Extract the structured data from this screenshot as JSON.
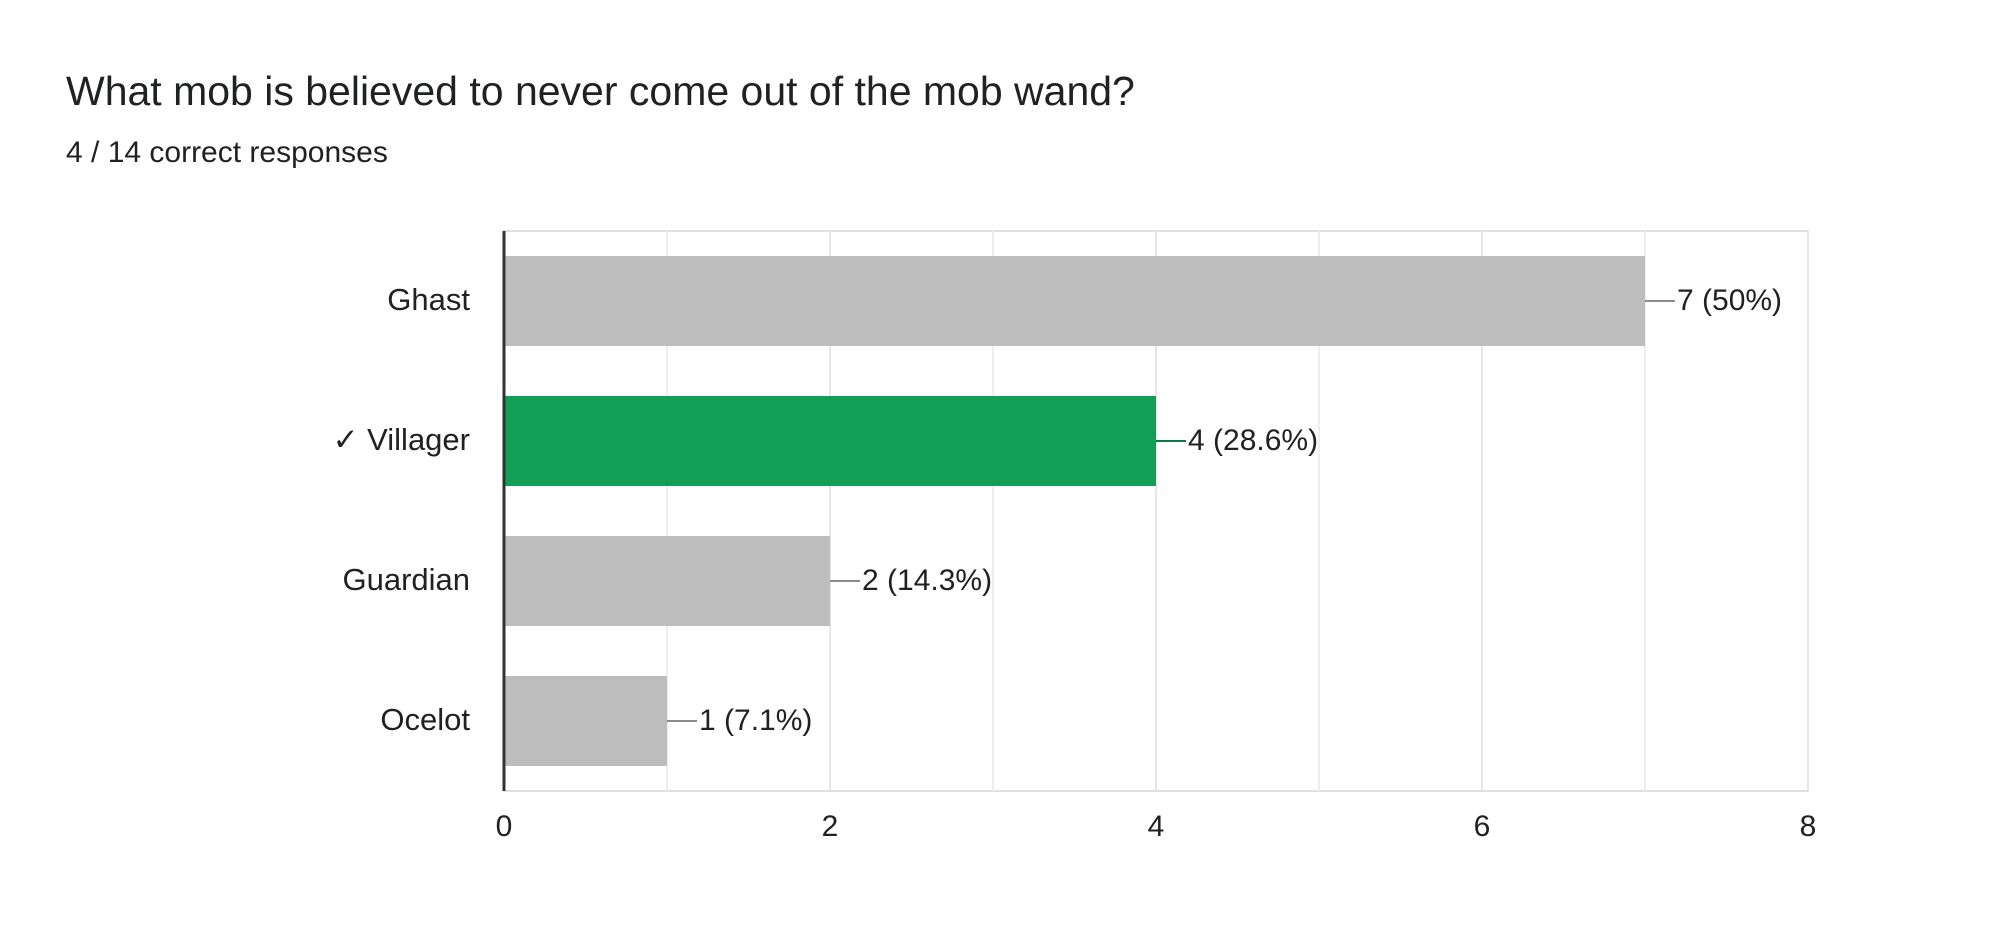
{
  "chart_data": {
    "type": "bar",
    "orientation": "horizontal",
    "title": "What mob is believed to never come out of the mob wand?",
    "subtitle": "4 / 14 correct responses",
    "categories": [
      "Ghast",
      "✓ Villager",
      "Guardian",
      "Ocelot"
    ],
    "values": [
      7,
      4,
      2,
      1
    ],
    "value_labels": [
      "7 (50%)",
      "4 (28.6%)",
      "2 (14.3%)",
      "1 (7.1%)"
    ],
    "colors": [
      "#bdbdbd",
      "#129e57",
      "#bdbdbd",
      "#bdbdbd"
    ],
    "label_colors": [
      "#8a8a8a",
      "#0d7a42",
      "#8a8a8a",
      "#8a8a8a"
    ],
    "xlim": [
      0,
      8
    ],
    "xticks": [
      0,
      2,
      4,
      6,
      8
    ],
    "minor_xticks": [
      1,
      3,
      5,
      7
    ],
    "grid": true
  }
}
